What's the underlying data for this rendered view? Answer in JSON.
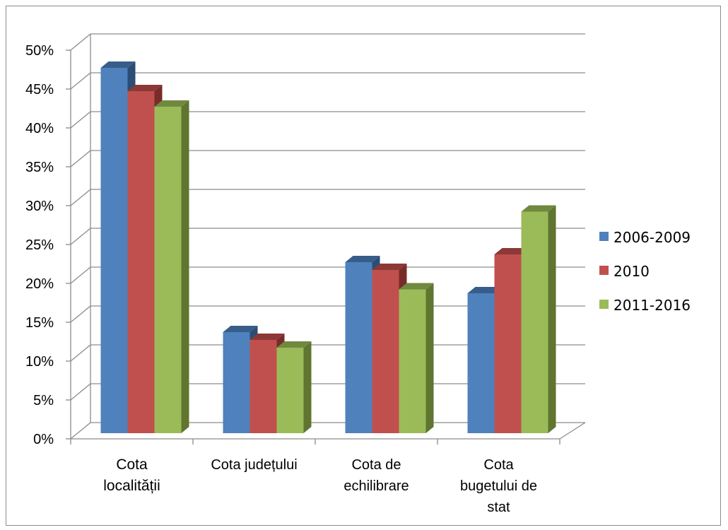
{
  "chart_data": {
    "type": "bar",
    "style": "3d-clustered-column",
    "categories": [
      [
        "Cota",
        "localității"
      ],
      [
        "Cota județului"
      ],
      [
        "Cota de",
        "echilibrare"
      ],
      [
        "Cota",
        "bugetului de",
        "stat"
      ]
    ],
    "series": [
      {
        "name": "2006-2009",
        "color": "#4f81bd",
        "side": "#2c4d75",
        "top": "#385d8a",
        "values": [
          47,
          13,
          22,
          18
        ]
      },
      {
        "name": "2010",
        "color": "#c0504d",
        "side": "#772c2a",
        "top": "#8c3836",
        "values": [
          44,
          12,
          21,
          23
        ]
      },
      {
        "name": "2011-2016",
        "color": "#9bbb59",
        "side": "#5f7530",
        "top": "#71893f",
        "values": [
          42,
          11,
          18.5,
          28.5
        ]
      }
    ],
    "yticks": [
      "0%",
      "5%",
      "10%",
      "15%",
      "20%",
      "25%",
      "30%",
      "35%",
      "40%",
      "45%",
      "50%"
    ],
    "ylim": [
      0,
      50
    ],
    "grid": true,
    "legend_position": "right"
  }
}
